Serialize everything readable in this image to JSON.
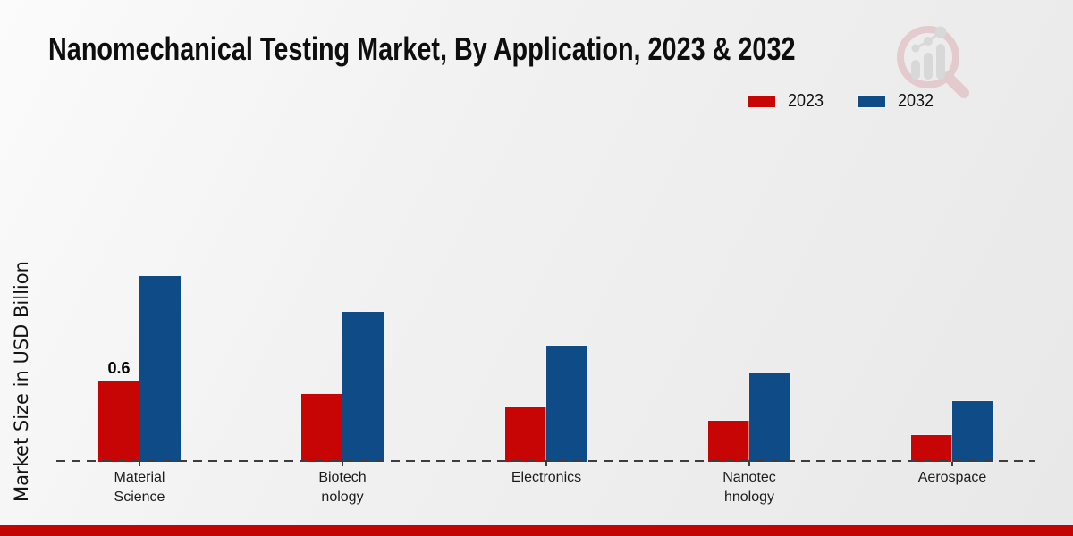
{
  "chart_data": {
    "type": "bar",
    "title": "Nanomechanical Testing Market, By Application, 2023 & 2032",
    "ylabel": "Market Size in USD Billion",
    "xlabel": "",
    "unit": "USD Billion",
    "categories": [
      "Material Science",
      "Biotechnology",
      "Electronics",
      "Nanotechnology",
      "Aerospace"
    ],
    "category_label_lines": [
      [
        "Material",
        "Science"
      ],
      [
        "Biotech",
        "nology"
      ],
      [
        "Electronics"
      ],
      [
        "Nanotec",
        "hnology"
      ],
      [
        "Aerospace"
      ]
    ],
    "series": [
      {
        "name": "2023",
        "color": "#c70505",
        "values": [
          0.6,
          0.5,
          0.4,
          0.3,
          0.2
        ]
      },
      {
        "name": "2032",
        "color": "#0f4c87",
        "values": [
          1.37,
          1.11,
          0.86,
          0.65,
          0.45
        ]
      }
    ],
    "bar_value_labels": [
      {
        "series": "2023",
        "category": "Material Science",
        "text": "0.6"
      }
    ],
    "ylim": [
      0,
      1.6
    ],
    "grid": false,
    "baseline_style": "dashed",
    "legend_position": "top-right"
  },
  "legend": {
    "items": [
      {
        "label": "2023",
        "color": "#c70505"
      },
      {
        "label": "2032",
        "color": "#0f4c87"
      }
    ]
  },
  "footer": {
    "color": "#c20404"
  },
  "logo": {
    "name": "market-research-magnifier-chart-logo"
  },
  "colors": {
    "axis": "#3d3d3d",
    "title_text": "#0e0e0e",
    "label_text": "#1c1c1c"
  }
}
